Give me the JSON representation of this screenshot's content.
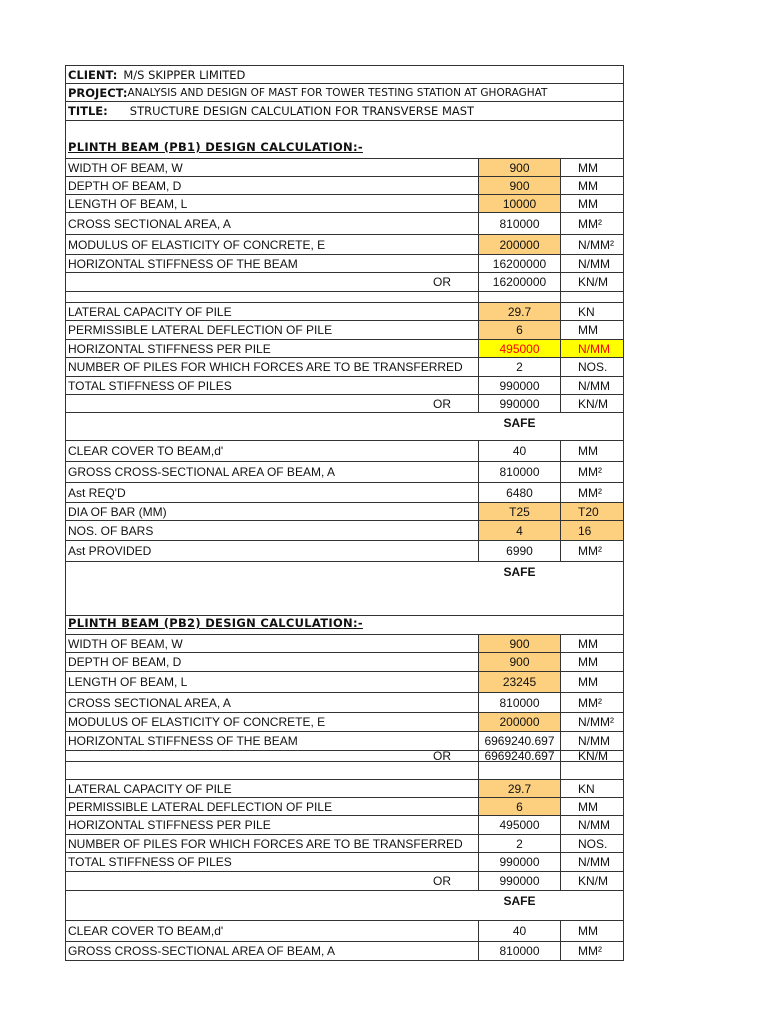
{
  "header": {
    "client_label": "CLIENT:",
    "client": "M/S SKIPPER LIMITED",
    "project_label": "PROJECT:",
    "project": "ANALYSIS AND DESIGN OF MAST FOR TOWER TESTING STATION AT GHORAGHAT",
    "title_label": "TITLE:",
    "title": "STRUCTURE DESIGN CALCULATION FOR TRANSVERSE MAST"
  },
  "colors": {
    "input_fill": "#fcd07f",
    "highlight_fill": "#ffff00",
    "highlight_text": "#ff0000"
  },
  "rows": [
    {
      "type": "section",
      "label": "PLINTH BEAM (PB1) DESIGN CALCULATION:-"
    },
    {
      "type": "row",
      "label": "WIDTH OF BEAM, W",
      "value": "900",
      "unit": "MM",
      "fill": "input"
    },
    {
      "type": "row",
      "label": "DEPTH OF BEAM, D",
      "value": "900",
      "unit": "MM",
      "fill": "input"
    },
    {
      "type": "row",
      "label": "LENGTH OF BEAM, L",
      "value": "10000",
      "unit": "MM",
      "fill": "input"
    },
    {
      "type": "row",
      "label": "CROSS SECTIONAL AREA, A",
      "value": "810000",
      "unit": "MM²"
    },
    {
      "type": "row",
      "label": "MODULUS OF ELASTICITY OF CONCRETE, E",
      "value": "200000",
      "unit": "N/MM²",
      "fill": "input"
    },
    {
      "type": "row",
      "label": "HORIZONTAL STIFFNESS OF THE BEAM",
      "value": "16200000",
      "unit": "N/MM"
    },
    {
      "type": "or",
      "label": "OR",
      "value": "16200000",
      "unit": "KN/M"
    },
    {
      "type": "blank"
    },
    {
      "type": "row",
      "label": "LATERAL CAPACITY OF PILE",
      "value": "29.7",
      "unit": "KN",
      "fill": "input"
    },
    {
      "type": "row",
      "label": "PERMISSIBLE LATERAL DEFLECTION OF PILE",
      "value": "6",
      "unit": "MM",
      "fill": "input"
    },
    {
      "type": "row",
      "label": "HORIZONTAL STIFFNESS PER PILE",
      "value": "495000",
      "unit": "N/MM",
      "fill": "highlight"
    },
    {
      "type": "row",
      "label": "NUMBER OF PILES FOR WHICH FORCES ARE TO BE TRANSFERRED",
      "value": "2",
      "unit": "NOS."
    },
    {
      "type": "row",
      "label": "TOTAL STIFFNESS OF PILES",
      "value": "990000",
      "unit": "N/MM"
    },
    {
      "type": "or",
      "label": "OR",
      "value": "990000",
      "unit": "KN/M"
    },
    {
      "type": "safe",
      "label": "SAFE"
    },
    {
      "type": "row",
      "label": "CLEAR COVER TO BEAM,d'",
      "value": "40",
      "unit": "MM"
    },
    {
      "type": "row",
      "label": "GROSS CROSS-SECTIONAL AREA OF BEAM, A",
      "value": "810000",
      "unit": "MM²"
    },
    {
      "type": "row",
      "label": "Ast REQ'D",
      "value": "6480",
      "unit": "MM²"
    },
    {
      "type": "row",
      "label": "DIA OF BAR (MM)",
      "value": "T25",
      "unit": "T20",
      "fill": "input",
      "unit_fill": "input"
    },
    {
      "type": "row",
      "label": "NOS. OF BARS",
      "value": "4",
      "unit": "16",
      "fill": "input",
      "unit_fill": "input"
    },
    {
      "type": "row",
      "label": "Ast PROVIDED",
      "value": "6990",
      "unit": "MM²"
    },
    {
      "type": "safe",
      "label": "SAFE"
    },
    {
      "type": "section",
      "label": "PLINTH BEAM (PB2) DESIGN CALCULATION:-"
    },
    {
      "type": "row",
      "label": "WIDTH OF BEAM, W",
      "value": "900",
      "unit": "MM",
      "fill": "input"
    },
    {
      "type": "row",
      "label": "DEPTH OF BEAM, D",
      "value": "900",
      "unit": "MM",
      "fill": "input"
    },
    {
      "type": "row",
      "label": "LENGTH OF BEAM, L",
      "value": "23245",
      "unit": "MM",
      "fill": "input"
    },
    {
      "type": "row",
      "label": "CROSS SECTIONAL AREA, A",
      "value": "810000",
      "unit": "MM²"
    },
    {
      "type": "row",
      "label": "MODULUS OF ELASTICITY OF CONCRETE, E",
      "value": "200000",
      "unit": "N/MM²",
      "fill": "input"
    },
    {
      "type": "row",
      "label": "HORIZONTAL STIFFNESS OF THE BEAM",
      "value": "6969240.697",
      "unit": "N/MM"
    },
    {
      "type": "or",
      "label": "OR",
      "value": "6969240.697",
      "unit": "KN/M"
    },
    {
      "type": "blank"
    },
    {
      "type": "row",
      "label": "LATERAL CAPACITY OF PILE",
      "value": "29.7",
      "unit": "KN",
      "fill": "input"
    },
    {
      "type": "row",
      "label": "PERMISSIBLE LATERAL DEFLECTION OF PILE",
      "value": "6",
      "unit": "MM",
      "fill": "input"
    },
    {
      "type": "row",
      "label": "HORIZONTAL STIFFNESS PER PILE",
      "value": "495000",
      "unit": "N/MM"
    },
    {
      "type": "row",
      "label": "NUMBER OF PILES FOR WHICH FORCES ARE TO BE TRANSFERRED",
      "value": "2",
      "unit": "NOS."
    },
    {
      "type": "row",
      "label": "TOTAL STIFFNESS OF PILES",
      "value": "990000",
      "unit": "N/MM"
    },
    {
      "type": "or",
      "label": "OR",
      "value": "990000",
      "unit": "KN/M"
    },
    {
      "type": "safe",
      "label": "SAFE"
    },
    {
      "type": "row",
      "label": "CLEAR COVER TO BEAM,d'",
      "value": "40",
      "unit": "MM"
    },
    {
      "type": "row",
      "label": "GROSS CROSS-SECTIONAL AREA OF BEAM, A",
      "value": "810000",
      "unit": "MM²"
    }
  ]
}
